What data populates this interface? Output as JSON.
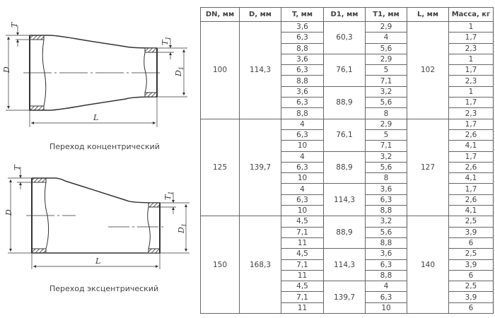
{
  "drawings": {
    "concentric_caption": "Переход концентрический",
    "eccentric_caption": "Переход эксцентрический",
    "labels": {
      "D": "D",
      "T": "T",
      "L": "L",
      "D1_main": "D",
      "D1_sub": "1",
      "T1_main": "T",
      "T1_sub": "1"
    }
  },
  "table": {
    "headers": [
      "DN, мм",
      "D, мм",
      "T, мм",
      "D1, мм",
      "T1, мм",
      "L, мм",
      "Масса, кг"
    ],
    "groups": [
      {
        "dn": "100",
        "d": "114,3",
        "l": "102",
        "sub": [
          {
            "d1": "60,3",
            "rows": [
              {
                "t": "3,6",
                "t1": "2,9",
                "mass": "1"
              },
              {
                "t": "6,3",
                "t1": "4",
                "mass": "1,7"
              },
              {
                "t": "8,8",
                "t1": "5,6",
                "mass": "2,3"
              }
            ]
          },
          {
            "d1": "76,1",
            "rows": [
              {
                "t": "3,6",
                "t1": "2,9",
                "mass": "1"
              },
              {
                "t": "6,3",
                "t1": "5",
                "mass": "1,7"
              },
              {
                "t": "8,8",
                "t1": "7,1",
                "mass": "2,3"
              }
            ]
          },
          {
            "d1": "88,9",
            "rows": [
              {
                "t": "3,6",
                "t1": "3,2",
                "mass": "1"
              },
              {
                "t": "6,3",
                "t1": "5,6",
                "mass": "1,7"
              },
              {
                "t": "8,8",
                "t1": "8",
                "mass": "2,3"
              }
            ]
          }
        ]
      },
      {
        "dn": "125",
        "d": "139,7",
        "l": "127",
        "sub": [
          {
            "d1": "76,1",
            "rows": [
              {
                "t": "4",
                "t1": "2,9",
                "mass": "1,7"
              },
              {
                "t": "6,3",
                "t1": "5",
                "mass": "2,6"
              },
              {
                "t": "10",
                "t1": "7,1",
                "mass": "4,1"
              }
            ]
          },
          {
            "d1": "88,9",
            "rows": [
              {
                "t": "4",
                "t1": "3,2",
                "mass": "1,7"
              },
              {
                "t": "6,3",
                "t1": "5,6",
                "mass": "2,6"
              },
              {
                "t": "10",
                "t1": "8",
                "mass": "4,1"
              }
            ]
          },
          {
            "d1": "114,3",
            "rows": [
              {
                "t": "4",
                "t1": "3,6",
                "mass": "1,7"
              },
              {
                "t": "6,3",
                "t1": "6,3",
                "mass": "2,6"
              },
              {
                "t": "10",
                "t1": "8,8",
                "mass": "4,1"
              }
            ]
          }
        ]
      },
      {
        "dn": "150",
        "d": "168,3",
        "l": "140",
        "sub": [
          {
            "d1": "88,9",
            "rows": [
              {
                "t": "4,5",
                "t1": "3,2",
                "mass": "2,5"
              },
              {
                "t": "7,1",
                "t1": "5,6",
                "mass": "3,9"
              },
              {
                "t": "11",
                "t1": "8,8",
                "mass": "6"
              }
            ]
          },
          {
            "d1": "114,3",
            "rows": [
              {
                "t": "4,5",
                "t1": "3,6",
                "mass": "2,5"
              },
              {
                "t": "7,1",
                "t1": "6,3",
                "mass": "3,9"
              },
              {
                "t": "11",
                "t1": "8,8",
                "mass": "6"
              }
            ]
          },
          {
            "d1": "139,7",
            "rows": [
              {
                "t": "4,5",
                "t1": "4",
                "mass": "2,5"
              },
              {
                "t": "7,1",
                "t1": "6,3",
                "mass": "3,9"
              },
              {
                "t": "11",
                "t1": "10",
                "mass": "6"
              }
            ]
          }
        ]
      }
    ]
  }
}
